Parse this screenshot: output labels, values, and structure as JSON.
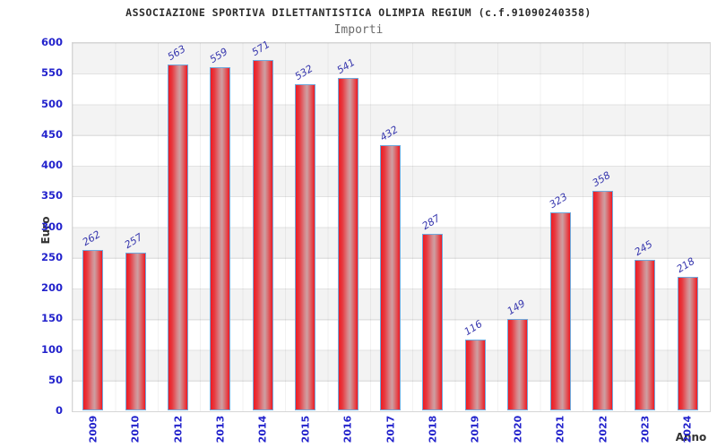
{
  "header": {
    "title": "ASSOCIAZIONE SPORTIVA DILETTANTISTICA OLIMPIA REGIUM (c.f.91090240358)",
    "subtitle": "Importi"
  },
  "chart_data": {
    "type": "bar",
    "title": "Importi",
    "categories": [
      "2009",
      "2010",
      "2012",
      "2013",
      "2014",
      "2015",
      "2016",
      "2017",
      "2018",
      "2019",
      "2020",
      "2021",
      "2022",
      "2023",
      "2024"
    ],
    "values": [
      262,
      257,
      563,
      559,
      571,
      532,
      541,
      432,
      287,
      116,
      149,
      323,
      358,
      245,
      218
    ],
    "xlabel": "Anno",
    "ylabel": "Euro",
    "ylim": [
      0,
      600
    ],
    "ytick_step": 50,
    "grid": true,
    "legend": false,
    "colors": {
      "bar_fill": "#ee1a22",
      "bar_highlight": "#cda0a3",
      "bar_border": "#70a9dc",
      "value_label": "#3535ad",
      "axis_tick_label": "#2323cc",
      "band_gray": "#f3f3f3",
      "band_white": "#ffffff",
      "title_text": "#2b2b2b",
      "subtitle_text": "#6b6b6b"
    }
  }
}
